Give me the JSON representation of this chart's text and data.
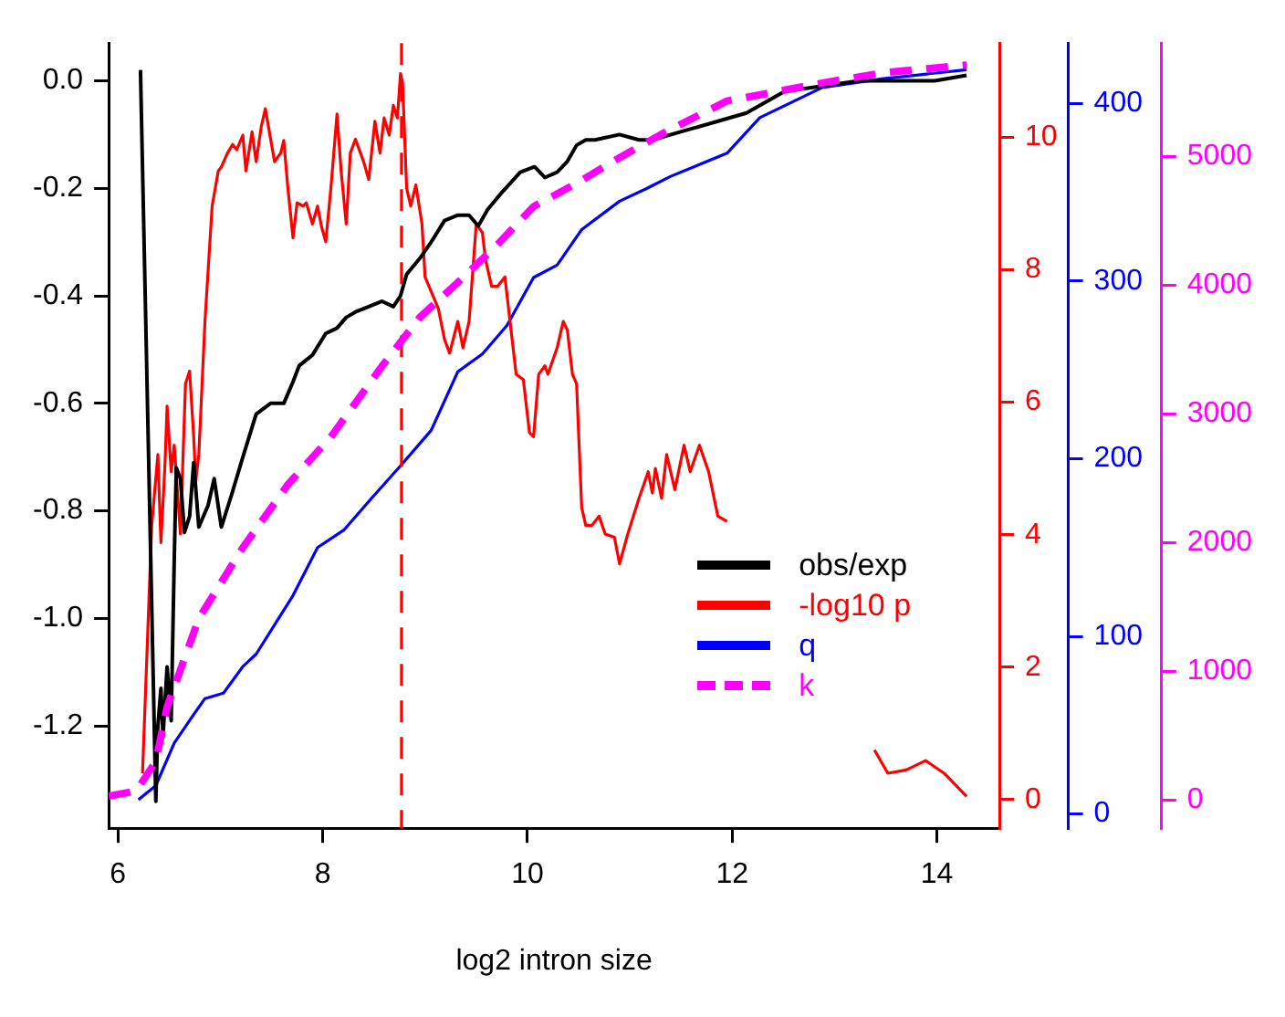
{
  "chart_data": [
    {
      "type": "line",
      "xlabel": "log2 intron size",
      "xlim": [
        5.91,
        14.61
      ],
      "xticks": [
        6,
        8,
        10,
        12,
        14
      ],
      "ylim": [
        -1.39,
        0.07
      ],
      "yticks": [
        -1.2,
        {
          "value": -1.0,
          "label": "-1.0"
        },
        -0.8,
        -0.6,
        -0.4,
        -0.2,
        {
          "value": 0,
          "label": "0.0"
        }
      ],
      "y2lim": [
        -0.43,
        11.42
      ],
      "y2ticks": [
        0,
        2,
        4,
        6,
        8,
        10
      ],
      "y3lim": [
        -8,
        434
      ],
      "y3ticks": [
        0,
        100,
        200,
        300,
        400
      ],
      "grid": false,
      "legend": "bottom right",
      "ref_lines": [
        {
          "axis": "x",
          "value": 8.77,
          "color": "#ff0000",
          "line_style": "dashed"
        }
      ],
      "series": [
        {
          "name": "obs/exp",
          "color": "#000000",
          "line_style": "solid",
          "x": [
            6.22,
            6.37,
            6.39,
            6.42,
            6.44,
            6.48,
            6.52,
            6.55,
            6.57,
            6.61,
            6.65,
            6.7,
            6.74,
            6.79,
            6.88,
            6.94,
            7.01,
            7.11,
            7.22,
            7.35,
            7.49,
            7.62,
            7.71,
            7.77,
            7.9,
            8.03,
            8.14,
            8.23,
            8.32,
            8.45,
            8.58,
            8.69,
            8.76,
            8.82,
            8.95,
            9.06,
            9.19,
            9.32,
            9.43,
            9.52,
            9.61,
            9.74,
            9.93,
            10.07,
            10.17,
            10.29,
            10.39,
            10.48,
            10.57,
            10.66,
            10.9,
            11.09,
            11.22,
            11.59,
            12.14,
            12.51,
            12.88,
            13.24,
            13.61,
            13.98,
            14.29
          ],
          "values": [
            0.02,
            -1.34,
            -1.2,
            -1.13,
            -1.22,
            -1.09,
            -1.19,
            -0.89,
            -0.72,
            -0.74,
            -0.84,
            -0.81,
            -0.71,
            -0.83,
            -0.79,
            -0.74,
            -0.83,
            -0.77,
            -0.7,
            -0.62,
            -0.6,
            -0.6,
            -0.56,
            -0.53,
            -0.51,
            -0.47,
            -0.46,
            -0.44,
            -0.43,
            -0.42,
            -0.41,
            -0.42,
            -0.4,
            -0.36,
            -0.33,
            -0.3,
            -0.26,
            -0.25,
            -0.25,
            -0.27,
            -0.24,
            -0.21,
            -0.17,
            -0.16,
            -0.18,
            -0.17,
            -0.15,
            -0.12,
            -0.11,
            -0.11,
            -0.1,
            -0.11,
            -0.11,
            -0.09,
            -0.06,
            -0.02,
            -0.01,
            0.0,
            0.0,
            0.0,
            0.01
          ]
        },
        {
          "name": "-log10 p",
          "color": "#ff0000",
          "line_style": "solid",
          "axis": "y2",
          "x": [
            6.24,
            6.33,
            6.39,
            6.42,
            6.46,
            6.48,
            6.52,
            6.55,
            6.61,
            6.66,
            6.7,
            6.74,
            6.76,
            6.79,
            6.85,
            6.92,
            6.98,
            7.01,
            7.07,
            7.12,
            7.16,
            7.22,
            7.25,
            7.31,
            7.35,
            7.4,
            7.44,
            7.47,
            7.53,
            7.59,
            7.62,
            7.66,
            7.71,
            7.75,
            7.81,
            7.84,
            7.9,
            7.95,
            7.99,
            8.03,
            8.08,
            8.14,
            8.18,
            8.23,
            8.27,
            8.32,
            8.4,
            8.45,
            8.51,
            8.56,
            8.6,
            8.65,
            8.69,
            8.73,
            8.76,
            8.78,
            8.82,
            8.86,
            8.91,
            8.97,
            9.0,
            9.06,
            9.13,
            9.19,
            9.24,
            9.32,
            9.37,
            9.43,
            9.5,
            9.56,
            9.59,
            9.65,
            9.71,
            9.78,
            9.84,
            9.89,
            9.96,
            10.02,
            10.06,
            10.11,
            10.17,
            10.2,
            10.29,
            10.35,
            10.39,
            10.44,
            10.48,
            10.53,
            10.57,
            10.63,
            10.7,
            10.76,
            10.85,
            10.9,
            10.98,
            11.09,
            11.18,
            11.22,
            11.25,
            11.31,
            11.36,
            11.44,
            11.53,
            11.59,
            11.68,
            11.77,
            11.86,
            11.95,
            12.6,
            13.39,
            13.52,
            13.7,
            13.89,
            14.07,
            14.29
          ],
          "values": [
            0.4,
            4.14,
            5.21,
            3.88,
            5.08,
            5.94,
            4.95,
            5.35,
            4.01,
            6.28,
            6.47,
            5.48,
            4.81,
            5.21,
            7.22,
            8.96,
            9.49,
            9.55,
            9.76,
            9.89,
            9.81,
            10.03,
            9.49,
            10.08,
            9.63,
            10.16,
            10.43,
            10.16,
            9.63,
            9.76,
            9.95,
            9.23,
            8.48,
            9.01,
            8.96,
            9.01,
            8.69,
            8.96,
            8.64,
            8.42,
            9.23,
            10.35,
            9.49,
            8.69,
            9.76,
            9.97,
            9.63,
            9.36,
            10.24,
            9.76,
            10.29,
            10.03,
            10.48,
            10.29,
            10.96,
            10.83,
            9.23,
            8.96,
            9.28,
            8.69,
            7.89,
            7.67,
            7.41,
            6.95,
            6.74,
            7.22,
            6.82,
            7.22,
            8.69,
            8.56,
            8.16,
            7.75,
            7.75,
            7.89,
            7.09,
            6.42,
            6.34,
            5.54,
            5.48,
            6.42,
            6.55,
            6.42,
            6.82,
            7.22,
            7.09,
            6.42,
            6.28,
            4.41,
            4.14,
            4.14,
            4.28,
            4.01,
            3.96,
            3.56,
            4.01,
            4.55,
            4.95,
            4.63,
            5.0,
            4.55,
            5.21,
            4.68,
            5.35,
            4.95,
            5.35,
            4.95,
            4.28,
            4.2,
            null,
            0.75,
            0.4,
            0.45,
            0.59,
            0.4,
            0.05
          ]
        },
        {
          "name": "q",
          "color": "#0000ff",
          "line_style": "solid",
          "axis": "y3",
          "x": [
            6.2,
            6.37,
            6.55,
            6.74,
            6.85,
            7.03,
            7.22,
            7.35,
            7.71,
            7.95,
            8.21,
            8.45,
            8.76,
            9.06,
            9.32,
            9.56,
            9.8,
            10.06,
            10.29,
            10.53,
            10.9,
            11.16,
            11.4,
            11.95,
            12.27,
            12.88,
            13.48,
            14.29
          ],
          "values": [
            8,
            16,
            40,
            56,
            65,
            68,
            83,
            90,
            123,
            150,
            160,
            176,
            196,
            216,
            249,
            259,
            275,
            302,
            309,
            329,
            345,
            352,
            359,
            372,
            392,
            409,
            414,
            419
          ]
        }
      ]
    },
    {
      "type": "line",
      "xlim": [
        5.91,
        14.61
      ],
      "ylim": [
        -220,
        5880
      ],
      "yticks": [
        0,
        1000,
        2000,
        3000,
        4000,
        5000
      ],
      "tick_labels": "y",
      "grid": false,
      "legend": "bottom right",
      "series": [
        {
          "name": "k",
          "color": "#ff00ff",
          "line_style": "dashed",
          "x": [
            5.91,
            6.18,
            6.37,
            6.48,
            6.79,
            7.22,
            7.66,
            8.08,
            8.58,
            8.95,
            9.32,
            9.69,
            10.06,
            10.48,
            10.9,
            11.35,
            11.95,
            12.88,
            13.48,
            14.29
          ],
          "values": [
            30,
            70,
            300,
            720,
            1410,
            1960,
            2450,
            2820,
            3370,
            3750,
            4020,
            4300,
            4610,
            4790,
            4990,
            5190,
            5430,
            5570,
            5650,
            5710
          ]
        }
      ]
    }
  ]
}
